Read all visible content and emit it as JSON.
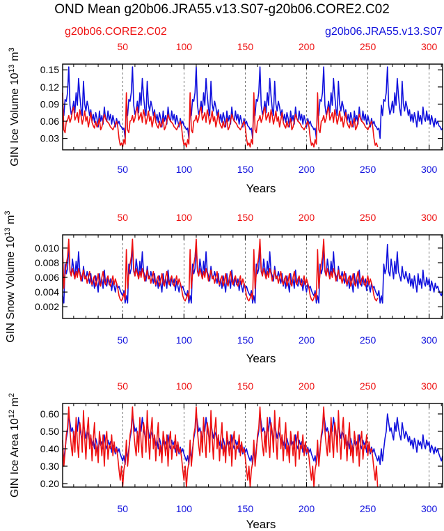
{
  "figure": {
    "title": "OND Mean g20b06.JRA55.v13.S07-g20b06.CORE2.C02",
    "legend_left": "g20b06.CORE2.C02",
    "legend_right": "g20b06.JRA55.v13.S07"
  },
  "colors": {
    "core2": "#ee1111",
    "jra55": "#1111dd",
    "axis": "#000000",
    "grid": "#555555"
  },
  "chart_data": [
    {
      "type": "line",
      "id": "ice-volume",
      "title": "",
      "xlabel": "Years",
      "ylabel": "GIN Ice Volume 10",
      "ylabel_sup": "13",
      "ylabel_unit": "m",
      "ylabel_unit_sup": "3",
      "xlim": [
        1,
        311
      ],
      "ylim": [
        0.01,
        0.16
      ],
      "yticks": [
        0.03,
        0.06,
        0.09,
        0.12,
        0.15
      ],
      "ytick_labels": [
        "0.03",
        "0.06",
        "0.09",
        "0.12",
        "0.15"
      ],
      "xticks_top": [
        50,
        100,
        150,
        200,
        250,
        300
      ],
      "xticks_bottom": [
        50,
        100,
        150,
        200,
        250,
        300
      ],
      "vlines": [
        50,
        100,
        150,
        200,
        250,
        300
      ],
      "series": [
        {
          "name": "g20b06.JRA55.v13.S07",
          "color_key": "jra55",
          "cycle_length": 52,
          "x_range": [
            1,
            311
          ],
          "cycle_values": [
            0.088,
            0.07,
            0.098,
            0.095,
            0.11,
            0.155,
            0.088,
            0.072,
            0.08,
            0.095,
            0.075,
            0.11,
            0.088,
            0.135,
            0.105,
            0.082,
            0.07,
            0.13,
            0.09,
            0.078,
            0.095,
            0.085,
            0.07,
            0.08,
            0.06,
            0.072,
            0.058,
            0.075,
            0.065,
            0.05,
            0.078,
            0.06,
            0.07,
            0.055,
            0.085,
            0.065,
            0.06,
            0.078,
            0.062,
            0.072,
            0.055,
            0.07,
            0.06,
            0.05,
            0.065,
            0.055,
            0.06,
            0.052,
            0.05,
            0.045,
            0.048,
            0.03
          ]
        },
        {
          "name": "g20b06.CORE2.C02",
          "color_key": "core2",
          "cycle_length": 52,
          "x_range": [
            1,
            258
          ],
          "cycle_values": [
            0.11,
            0.045,
            0.04,
            0.06,
            0.062,
            0.07,
            0.058,
            0.065,
            0.078,
            0.085,
            0.062,
            0.068,
            0.075,
            0.058,
            0.08,
            0.07,
            0.055,
            0.065,
            0.078,
            0.06,
            0.068,
            0.05,
            0.062,
            0.075,
            0.058,
            0.052,
            0.048,
            0.06,
            0.05,
            0.055,
            0.065,
            0.045,
            0.05,
            0.06,
            0.072,
            0.065,
            0.06,
            0.058,
            0.055,
            0.05,
            0.048,
            0.045,
            0.05,
            0.055,
            0.06,
            0.05,
            0.03,
            0.018,
            0.022,
            0.015,
            0.028,
            0.02
          ]
        }
      ]
    },
    {
      "type": "line",
      "id": "snow-volume",
      "title": "",
      "xlabel": "Years",
      "ylabel": "GIN Snow Volume 10",
      "ylabel_sup": "13",
      "ylabel_unit": "m",
      "ylabel_unit_sup": "3",
      "xlim": [
        1,
        311
      ],
      "ylim": [
        0.0004,
        0.0118
      ],
      "yticks": [
        0.002,
        0.004,
        0.006,
        0.008,
        0.01
      ],
      "ytick_labels": [
        "0.002",
        "0.004",
        "0.006",
        "0.008",
        "0.010"
      ],
      "xticks_top": [
        50,
        100,
        150,
        200,
        250,
        300
      ],
      "xticks_bottom": [
        50,
        100,
        150,
        200,
        250,
        300
      ],
      "vlines": [
        50,
        100,
        150,
        200,
        250,
        300
      ],
      "series": [
        {
          "name": "g20b06.JRA55.v13.S07",
          "color_key": "jra55",
          "cycle_length": 52,
          "x_range": [
            1,
            311
          ],
          "cycle_values": [
            0.0035,
            0.0025,
            0.0078,
            0.0065,
            0.0072,
            0.0105,
            0.0068,
            0.0062,
            0.0085,
            0.0072,
            0.0058,
            0.0082,
            0.0065,
            0.0095,
            0.0068,
            0.0062,
            0.0055,
            0.0075,
            0.0062,
            0.0058,
            0.0068,
            0.006,
            0.0052,
            0.0065,
            0.0048,
            0.0058,
            0.0045,
            0.0062,
            0.0052,
            0.004,
            0.0065,
            0.005,
            0.0058,
            0.0045,
            0.007,
            0.0052,
            0.0048,
            0.006,
            0.005,
            0.0058,
            0.0042,
            0.0055,
            0.0048,
            0.004,
            0.0052,
            0.0045,
            0.0048,
            0.0042,
            0.0038,
            0.0035,
            0.0042,
            0.0025
          ]
        },
        {
          "name": "g20b06.CORE2.C02",
          "color_key": "core2",
          "cycle_length": 52,
          "x_range": [
            1,
            258
          ],
          "cycle_values": [
            0.0098,
            0.0045,
            0.0065,
            0.0078,
            0.0088,
            0.0112,
            0.007,
            0.0062,
            0.0072,
            0.0065,
            0.0058,
            0.0068,
            0.006,
            0.0072,
            0.0065,
            0.0055,
            0.0062,
            0.007,
            0.0058,
            0.0062,
            0.0052,
            0.006,
            0.0068,
            0.0055,
            0.005,
            0.0058,
            0.0062,
            0.0048,
            0.0055,
            0.0065,
            0.0052,
            0.0048,
            0.006,
            0.0068,
            0.0055,
            0.005,
            0.0058,
            0.0062,
            0.0052,
            0.0048,
            0.0055,
            0.0062,
            0.005,
            0.0058,
            0.0052,
            0.0045,
            0.0035,
            0.003,
            0.0028,
            0.0032,
            0.0038,
            0.003
          ]
        }
      ]
    },
    {
      "type": "line",
      "id": "ice-area",
      "title": "",
      "xlabel": "Years",
      "ylabel": "GIN Ice Area 10",
      "ylabel_sup": "12",
      "ylabel_unit": "m",
      "ylabel_unit_sup": "2",
      "xlim": [
        1,
        311
      ],
      "ylim": [
        0.18,
        0.66
      ],
      "yticks": [
        0.2,
        0.3,
        0.4,
        0.5,
        0.6
      ],
      "ytick_labels": [
        "0.20",
        "0.30",
        "0.40",
        "0.50",
        "0.60"
      ],
      "xticks_top": [
        50,
        100,
        150,
        200,
        250,
        300
      ],
      "xticks_bottom": [
        50,
        100,
        150,
        200,
        250,
        300
      ],
      "vlines": [
        50,
        100,
        150,
        200,
        250,
        300
      ],
      "series": [
        {
          "name": "g20b06.JRA55.v13.S07",
          "color_key": "jra55",
          "cycle_length": 52,
          "x_range": [
            1,
            311
          ],
          "cycle_values": [
            0.4,
            0.33,
            0.4,
            0.46,
            0.5,
            0.6,
            0.55,
            0.5,
            0.52,
            0.48,
            0.45,
            0.55,
            0.5,
            0.58,
            0.52,
            0.48,
            0.45,
            0.55,
            0.5,
            0.46,
            0.5,
            0.48,
            0.44,
            0.47,
            0.42,
            0.45,
            0.4,
            0.46,
            0.43,
            0.38,
            0.45,
            0.42,
            0.44,
            0.4,
            0.48,
            0.42,
            0.4,
            0.45,
            0.42,
            0.44,
            0.38,
            0.42,
            0.4,
            0.37,
            0.41,
            0.38,
            0.4,
            0.37,
            0.35,
            0.33,
            0.36,
            0.31
          ]
        },
        {
          "name": "g20b06.CORE2.C02",
          "color_key": "core2",
          "cycle_length": 52,
          "x_range": [
            1,
            258
          ],
          "cycle_values": [
            0.45,
            0.3,
            0.38,
            0.48,
            0.52,
            0.64,
            0.5,
            0.42,
            0.36,
            0.5,
            0.38,
            0.58,
            0.44,
            0.35,
            0.55,
            0.5,
            0.38,
            0.62,
            0.46,
            0.34,
            0.5,
            0.58,
            0.4,
            0.48,
            0.33,
            0.46,
            0.55,
            0.36,
            0.42,
            0.32,
            0.5,
            0.44,
            0.36,
            0.48,
            0.3,
            0.45,
            0.5,
            0.34,
            0.42,
            0.4,
            0.48,
            0.36,
            0.44,
            0.38,
            0.4,
            0.35,
            0.28,
            0.22,
            0.3,
            0.18,
            0.28,
            0.32
          ]
        }
      ]
    }
  ]
}
